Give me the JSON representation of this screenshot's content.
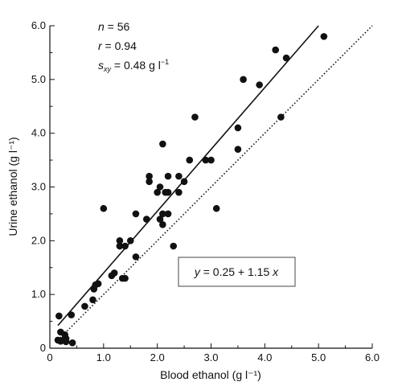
{
  "chart_data": {
    "type": "scatter",
    "xlabel": "Blood ethanol (g l⁻¹)",
    "ylabel": "Urine ethanol (g l⁻¹)",
    "xlim": [
      0,
      6.0
    ],
    "ylim": [
      0,
      6.0
    ],
    "x_ticks": [
      "0",
      "1.0",
      "2.0",
      "3.0",
      "4.0",
      "5.0",
      "6.0"
    ],
    "y_ticks": [
      "0",
      "1.0",
      "2.0",
      "3.0",
      "4.0",
      "5.0",
      "6.0"
    ],
    "grid": false,
    "stats": {
      "n_symbol": "n",
      "n_text": " = 56",
      "r_symbol": "r",
      "r_text": " = 0.94",
      "s_symbol": "s",
      "s_subscript": "xy",
      "s_text": " = 0.48 g l",
      "s_unit_exp": "−1"
    },
    "regression": {
      "equation_y": "y",
      "equation_middle": " = 0.25 + 1.15 ",
      "equation_x": "x",
      "intercept": 0.25,
      "slope": 1.15,
      "x_range": [
        0.15,
        5.0
      ]
    },
    "identity_line": {
      "style": "dotted",
      "x_range": [
        0.15,
        6.0
      ]
    },
    "points": [
      [
        0.15,
        0.15
      ],
      [
        0.17,
        0.6
      ],
      [
        0.2,
        0.3
      ],
      [
        0.2,
        0.13
      ],
      [
        0.25,
        0.15
      ],
      [
        0.28,
        0.25
      ],
      [
        0.3,
        0.12
      ],
      [
        0.3,
        0.18
      ],
      [
        0.4,
        0.62
      ],
      [
        0.42,
        0.1
      ],
      [
        0.65,
        0.78
      ],
      [
        0.8,
        0.9
      ],
      [
        0.82,
        1.1
      ],
      [
        0.9,
        1.2
      ],
      [
        0.85,
        1.18
      ],
      [
        1.0,
        2.6
      ],
      [
        1.2,
        1.4
      ],
      [
        1.3,
        1.9
      ],
      [
        1.3,
        2.0
      ],
      [
        1.35,
        1.3
      ],
      [
        1.4,
        1.3
      ],
      [
        1.4,
        1.9
      ],
      [
        1.5,
        2.0
      ],
      [
        1.6,
        1.7
      ],
      [
        1.6,
        2.5
      ],
      [
        1.8,
        2.4
      ],
      [
        1.85,
        3.1
      ],
      [
        1.85,
        3.2
      ],
      [
        2.0,
        2.9
      ],
      [
        2.05,
        3.0
      ],
      [
        2.1,
        3.8
      ],
      [
        2.1,
        2.5
      ],
      [
        2.1,
        2.3
      ],
      [
        2.15,
        2.9
      ],
      [
        2.2,
        2.9
      ],
      [
        2.2,
        3.2
      ],
      [
        2.2,
        2.5
      ],
      [
        2.3,
        1.9
      ],
      [
        2.4,
        2.9
      ],
      [
        2.4,
        3.2
      ],
      [
        2.5,
        3.1
      ],
      [
        2.6,
        3.5
      ],
      [
        2.7,
        4.3
      ],
      [
        2.9,
        3.5
      ],
      [
        3.0,
        3.5
      ],
      [
        3.1,
        2.6
      ],
      [
        3.5,
        4.1
      ],
      [
        3.5,
        3.7
      ],
      [
        3.6,
        5.0
      ],
      [
        3.9,
        4.9
      ],
      [
        4.2,
        5.55
      ],
      [
        4.3,
        4.3
      ],
      [
        4.4,
        5.4
      ],
      [
        5.1,
        5.8
      ],
      [
        2.05,
        2.4
      ],
      [
        1.15,
        1.35
      ]
    ]
  }
}
